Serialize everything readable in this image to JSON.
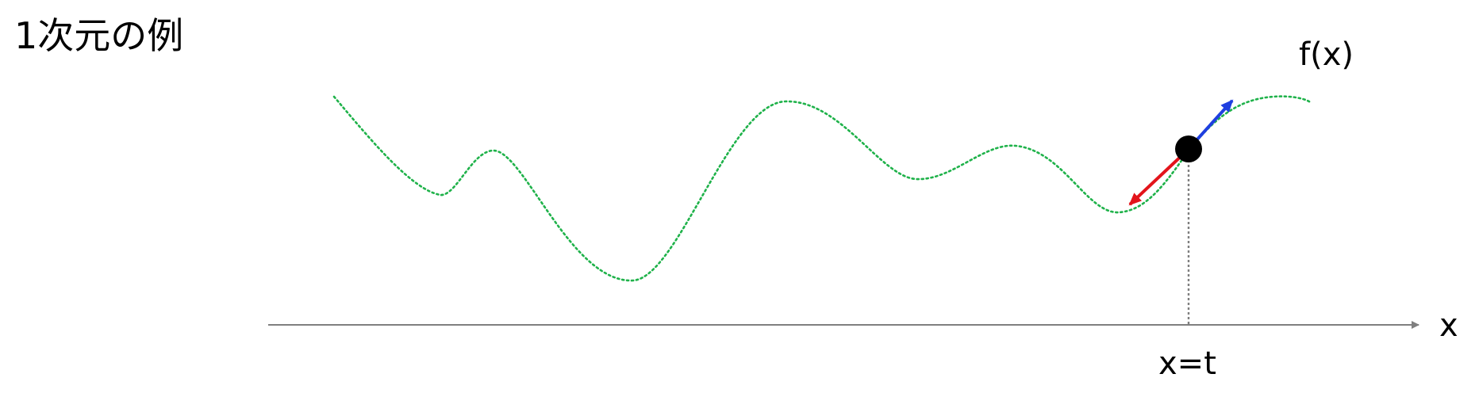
{
  "title": "1次元の例",
  "function_label": "f(x)",
  "axis_label": "x",
  "point_label": "x=t",
  "colors": {
    "curve": "#1fb24a",
    "axis": "#7f7f7f",
    "dropline": "#7f7f7f",
    "point": "#000000",
    "ascent_arrow": "#1f3fe0",
    "descent_arrow": "#e3141b"
  }
}
